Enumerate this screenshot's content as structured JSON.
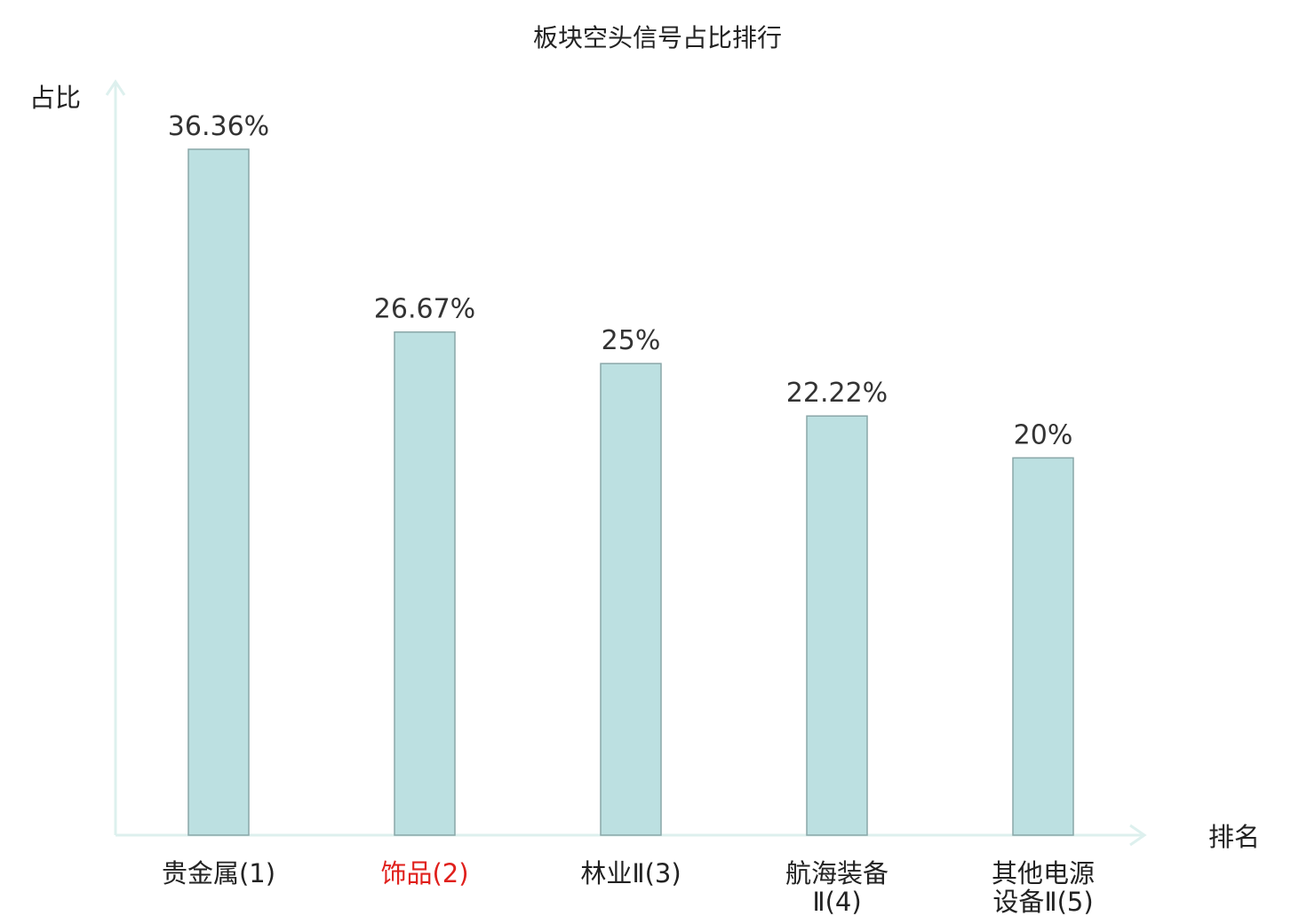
{
  "chart_data": {
    "type": "bar",
    "title": "板块空头信号占比排行",
    "xlabel": "排名",
    "ylabel": "占比",
    "categories": [
      [
        "贵金属(1)"
      ],
      [
        "饰品(2)"
      ],
      [
        "林业Ⅱ(3)"
      ],
      [
        "航海装备",
        "Ⅱ(4)"
      ],
      [
        "其他电源",
        "设备Ⅱ(5)"
      ]
    ],
    "values": [
      36.36,
      26.67,
      25,
      22.22,
      20
    ],
    "value_labels": [
      "36.36%",
      "26.67%",
      "25%",
      "22.22%",
      "20%"
    ],
    "highlight_index": 1,
    "ylim": [
      0,
      40
    ],
    "grid": false,
    "legend": "none"
  },
  "colors": {
    "bar_fill": "#bce0e1",
    "bar_stroke": "#8aa7a8",
    "axis": "#ddf0ee",
    "text": "#222222",
    "highlight": "#e0201c"
  }
}
